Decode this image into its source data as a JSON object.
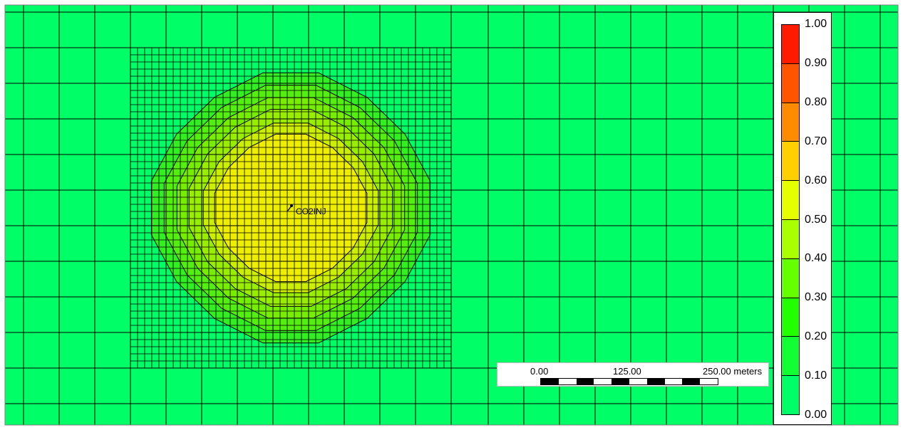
{
  "map": {
    "background_color": "#00ff66",
    "well": {
      "name": "CO2INJ"
    },
    "contour_colors": [
      "#33ee22",
      "#55ee11",
      "#77ee00",
      "#99ee00",
      "#ccee00",
      "#eeee00"
    ]
  },
  "scale_bar": {
    "labels": [
      "0.00",
      "125.00",
      "250.00 meters"
    ]
  },
  "legend": {
    "labels": [
      "1.00",
      "0.90",
      "0.80",
      "0.70",
      "0.60",
      "0.50",
      "0.40",
      "0.30",
      "0.20",
      "0.10",
      "0.00"
    ],
    "colors": [
      "#ff1a00",
      "#ff5500",
      "#ff8c00",
      "#ffd000",
      "#e6ff00",
      "#aaff00",
      "#66ff00",
      "#22ff00",
      "#11ff33",
      "#00ff66"
    ]
  }
}
